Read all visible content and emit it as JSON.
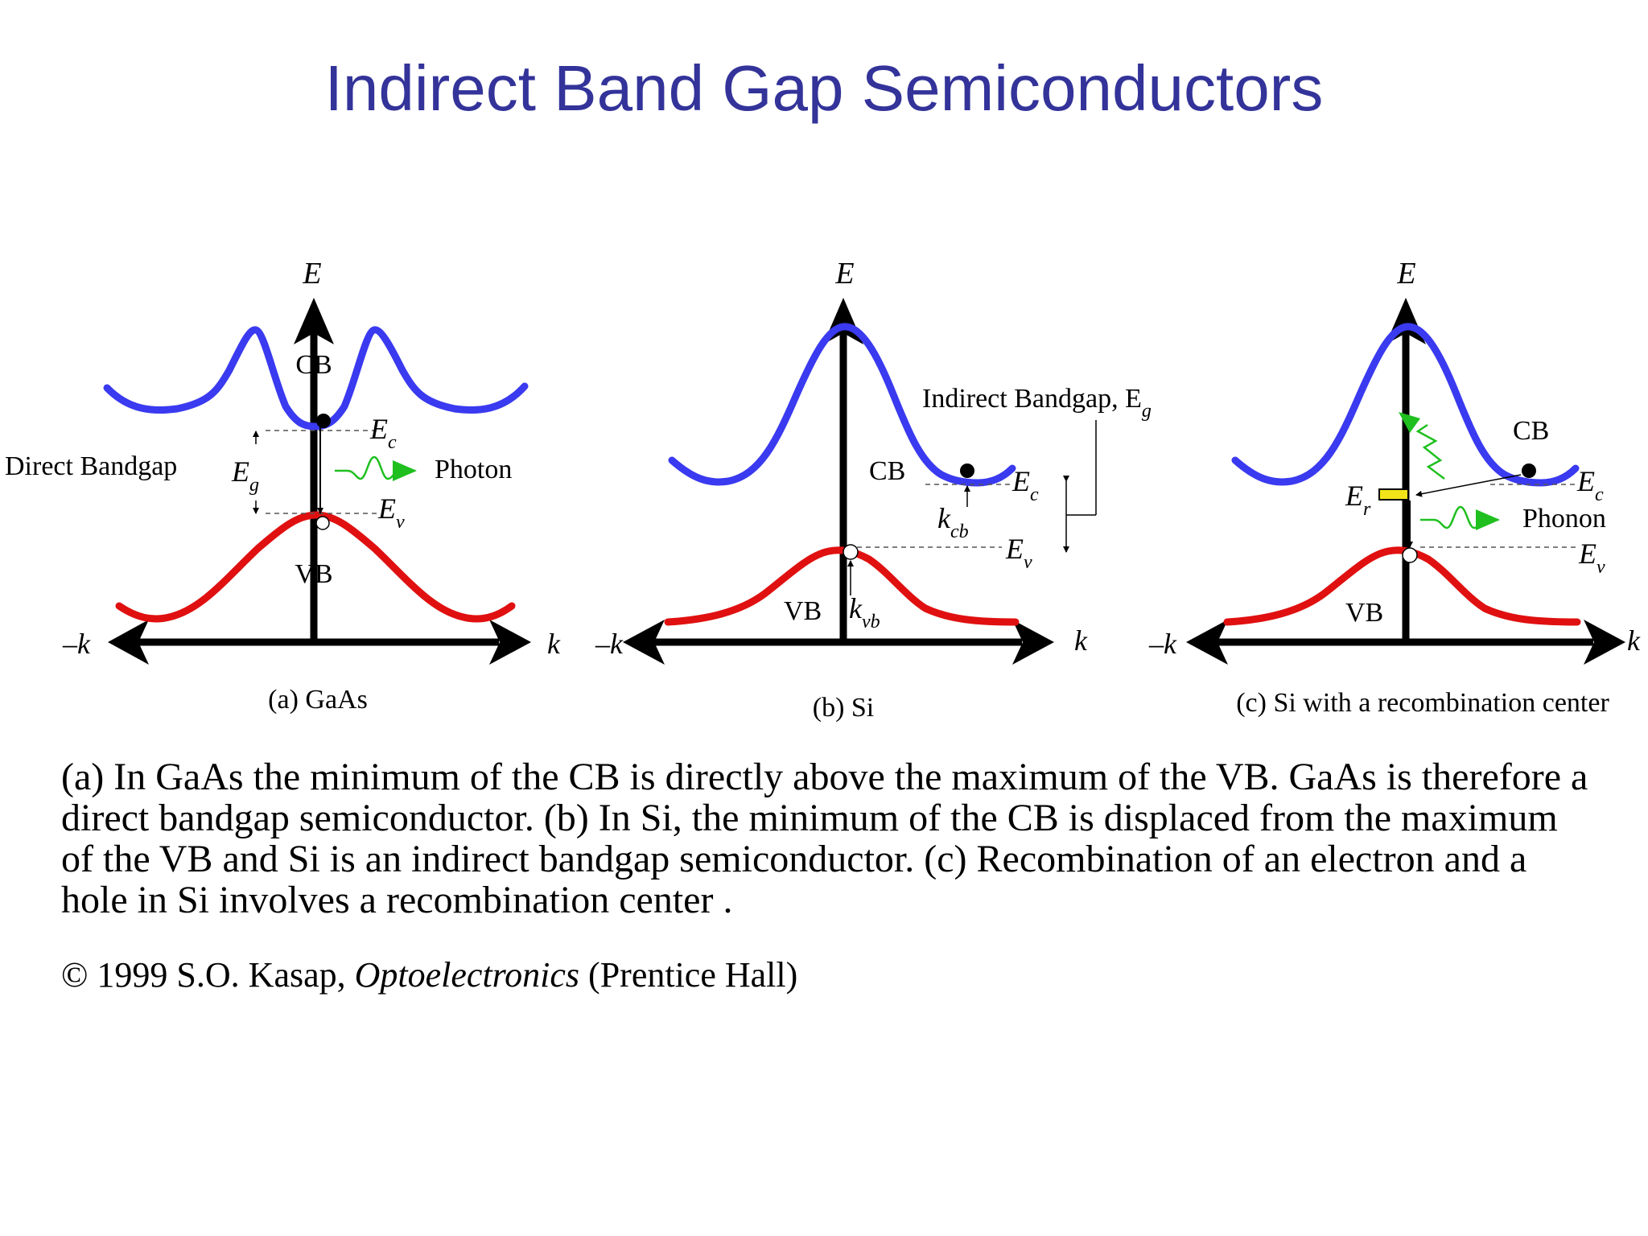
{
  "slide": {
    "title": "Indirect Band Gap Semiconductors",
    "description": "(a) In GaAs the minimum of the CB is directly above the maximum of the VB. GaAs is therefore a direct bandgap semiconductor. (b) In Si, the minimum of the CB is displaced from the maximum of the VB and Si is an indirect bandgap semiconductor. (c) Recombination of an electron and a hole in Si involves a recombination center .",
    "copyright": {
      "prefix": "© 1999 S.O. Kasap, ",
      "book": "Optoelectronics",
      "suffix": " (Prentice Hall)"
    }
  },
  "colors": {
    "conduction_band": "#3a3af0",
    "valence_band": "#e01010",
    "arrow_green": "#1fbf1f",
    "recombination_center": "#f2e418",
    "title": "#33339a"
  },
  "panels": {
    "a": {
      "caption": "(a) GaAs",
      "energy_axis": "E",
      "k_neg": "–k",
      "k_pos": "k",
      "cb_label": "CB",
      "vb_label": "VB",
      "ec": "E",
      "ec_sub": "c",
      "ev": "E",
      "ev_sub": "v",
      "eg": "E",
      "eg_sub": "g",
      "left_label": "Direct Bandgap",
      "emission_label": "Photon"
    },
    "b": {
      "caption": "(b) Si",
      "energy_axis": "E",
      "k_neg": "–k",
      "k_pos": "k",
      "cb_label": "CB",
      "vb_label": "VB",
      "ec": "E",
      "ec_sub": "c",
      "ev": "E",
      "ev_sub": "v",
      "kcb": "k",
      "kcb_sub": "cb",
      "kvb": "k",
      "kvb_sub": "vb",
      "gap_label": "Indirect Bandgap, E",
      "gap_sub": "g"
    },
    "c": {
      "caption": "(c) Si with a recombination center",
      "energy_axis": "E",
      "k_neg": "–k",
      "k_pos": "k",
      "cb_label": "CB",
      "vb_label": "VB",
      "ec": "E",
      "ec_sub": "c",
      "ev": "E",
      "ev_sub": "v",
      "er": "E",
      "er_sub": "r",
      "emission_label": "Phonon"
    }
  }
}
